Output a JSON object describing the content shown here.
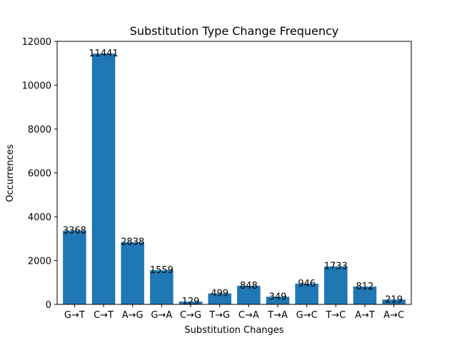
{
  "chart_data": {
    "type": "bar",
    "title": "Substitution Type Change Frequency",
    "xlabel": "Substitution Changes",
    "ylabel": "Occurrences",
    "categories": [
      "G→T",
      "C→T",
      "A→G",
      "G→A",
      "C→G",
      "T→G",
      "C→A",
      "T→A",
      "G→C",
      "T→C",
      "A→T",
      "A→C"
    ],
    "values": [
      3368,
      11441,
      2838,
      1559,
      129,
      499,
      848,
      349,
      946,
      1733,
      812,
      219
    ],
    "ylim": [
      0,
      12000
    ],
    "yticks": [
      0,
      2000,
      4000,
      6000,
      8000,
      10000,
      12000
    ],
    "bar_color": "#1f77b4",
    "grid": false,
    "data_labels": true
  }
}
